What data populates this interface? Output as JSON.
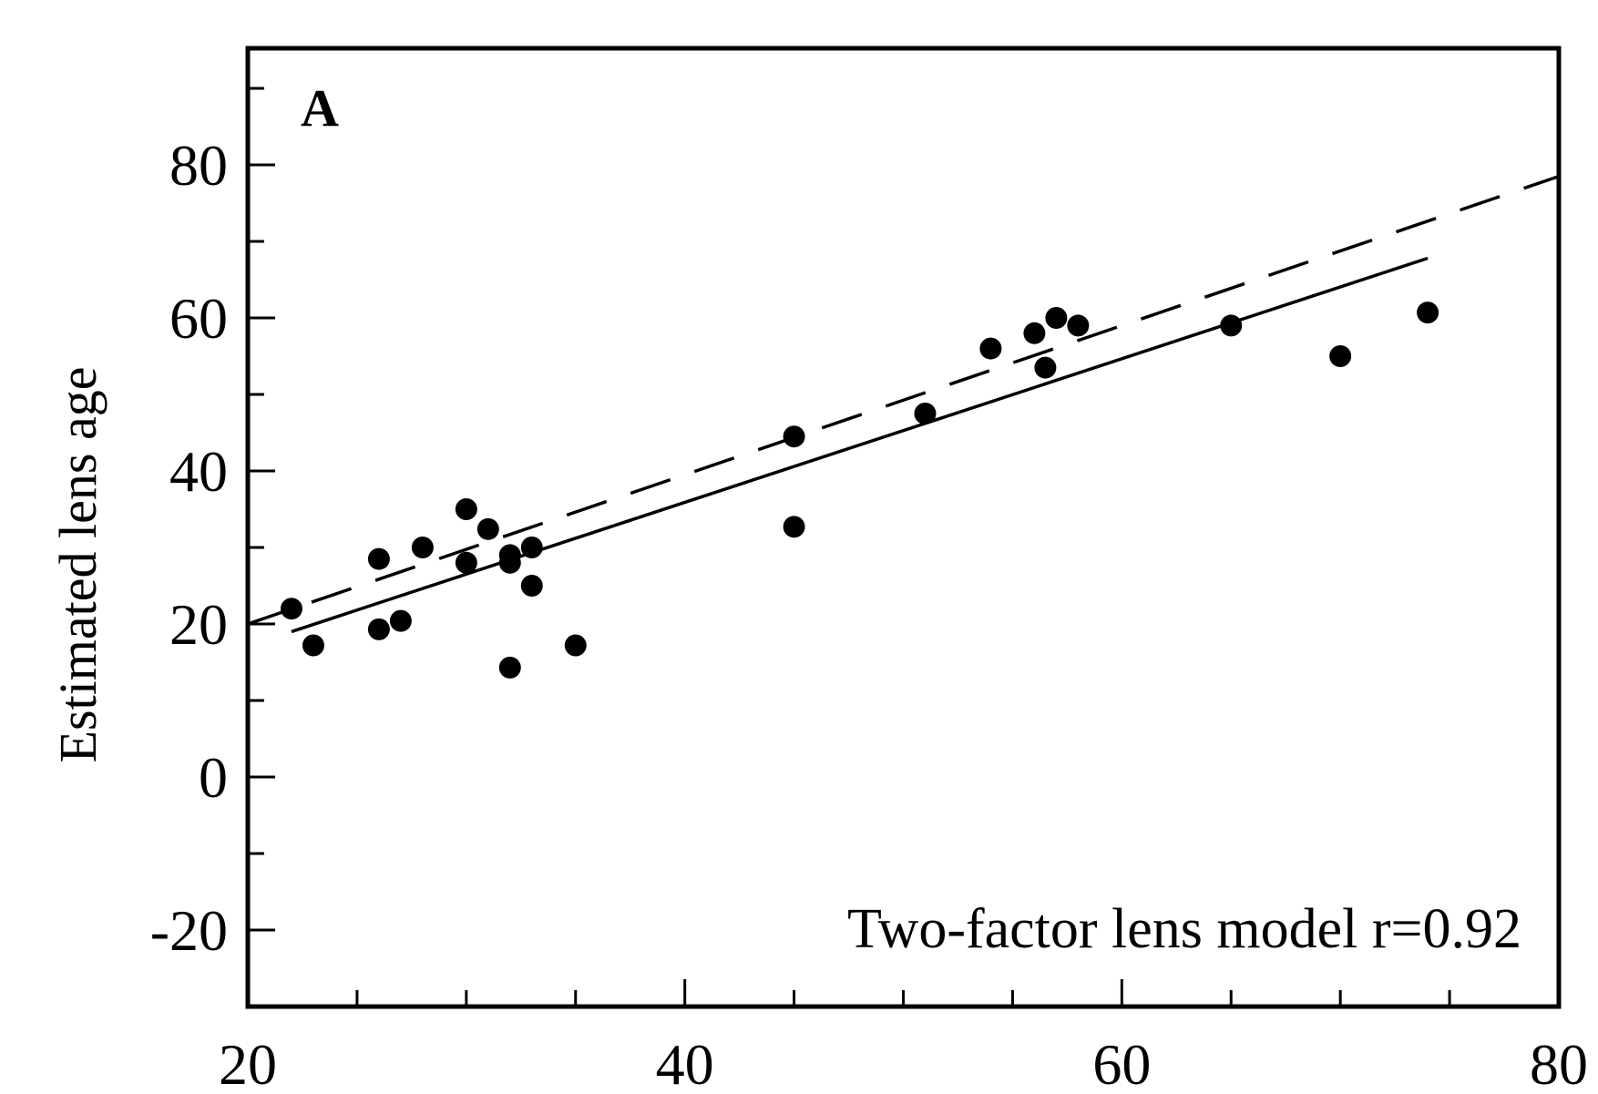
{
  "chart_data": {
    "type": "scatter",
    "panel_label": "A",
    "title": "",
    "xlabel": "",
    "ylabel": "Estimated lens age",
    "annotation": "Two-factor lens model  r=0.92",
    "xlim": [
      20,
      80
    ],
    "ylim": [
      -30,
      95
    ],
    "x_ticks": [
      20,
      40,
      60,
      80
    ],
    "x_minor_ticks": [
      25,
      30,
      35,
      45,
      50,
      55,
      65,
      70,
      75
    ],
    "y_ticks": [
      -20,
      0,
      20,
      40,
      60,
      80
    ],
    "y_minor_ticks": [
      -10,
      10,
      30,
      50,
      70,
      90
    ],
    "grid": false,
    "series": [
      {
        "marker": "filled-circle",
        "color": "#000000",
        "points": [
          {
            "x": 22,
            "y": 22
          },
          {
            "x": 23,
            "y": 17.2
          },
          {
            "x": 26,
            "y": 28.5
          },
          {
            "x": 26,
            "y": 19.3
          },
          {
            "x": 27,
            "y": 20.4
          },
          {
            "x": 28,
            "y": 30
          },
          {
            "x": 30,
            "y": 35
          },
          {
            "x": 30,
            "y": 28
          },
          {
            "x": 31,
            "y": 32.4
          },
          {
            "x": 32,
            "y": 29
          },
          {
            "x": 32,
            "y": 28
          },
          {
            "x": 32,
            "y": 14.3
          },
          {
            "x": 33,
            "y": 30
          },
          {
            "x": 33,
            "y": 25
          },
          {
            "x": 35,
            "y": 17.2
          },
          {
            "x": 45,
            "y": 44.5
          },
          {
            "x": 45,
            "y": 32.7
          },
          {
            "x": 51,
            "y": 47.5
          },
          {
            "x": 54,
            "y": 56
          },
          {
            "x": 56,
            "y": 58
          },
          {
            "x": 56.5,
            "y": 53.5
          },
          {
            "x": 57,
            "y": 60
          },
          {
            "x": 58,
            "y": 59
          },
          {
            "x": 65,
            "y": 59
          },
          {
            "x": 70,
            "y": 55
          },
          {
            "x": 74,
            "y": 60.7
          }
        ]
      }
    ],
    "lines": [
      {
        "style": "solid",
        "color": "#000000",
        "x": [
          22,
          74
        ],
        "y": [
          19,
          67.8
        ]
      },
      {
        "style": "dashed",
        "color": "#000000",
        "x": [
          20,
          80
        ],
        "y": [
          20,
          78.5
        ]
      }
    ]
  }
}
